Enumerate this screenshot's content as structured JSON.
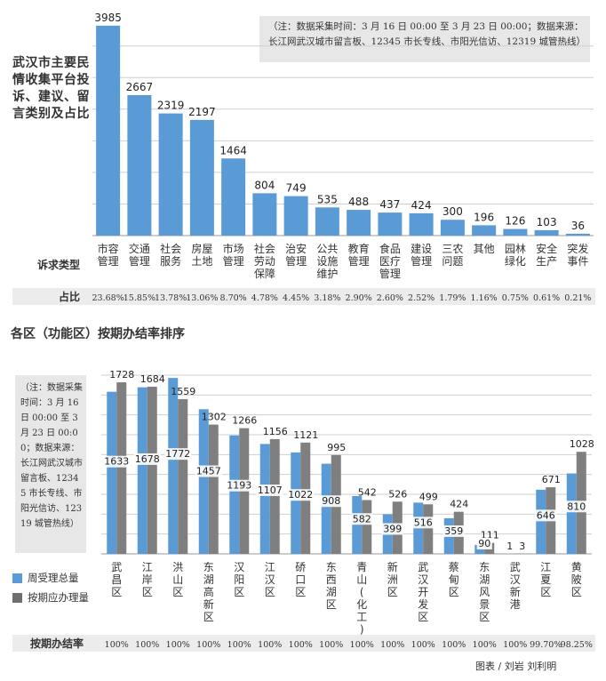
{
  "chart_data": [
    {
      "type": "bar",
      "title": "武汉市主要民情收集平台投诉、建议、留言类别及占比",
      "note": "（注：数据采集时间：3 月 16 日 00:00 至 3 月 23 日 00:00；数据来源：长江网武汉城市留言板、12345 市长专线、市阳光信访、12319 城管热线）",
      "row_label_category": "诉求类型",
      "row_label_share": "占比",
      "categories": [
        "市容管理",
        "交通管理",
        "社会服务",
        "房屋土地",
        "市场管理",
        "社会劳动保障",
        "治安管理",
        "公共设施维护",
        "教育管理",
        "食品医疗管理",
        "建设管理",
        "三农问题",
        "其他",
        "园林绿化",
        "安全生产",
        "突发事件"
      ],
      "values": [
        3985,
        2667,
        2319,
        2197,
        1464,
        804,
        749,
        535,
        488,
        437,
        424,
        300,
        196,
        126,
        103,
        36
      ],
      "shares": [
        "23.68%",
        "15.85%",
        "13.78%",
        "13.06%",
        "8.70%",
        "4.78%",
        "4.45%",
        "3.18%",
        "2.90%",
        "2.60%",
        "2.52%",
        "1.79%",
        "1.16%",
        "0.75%",
        "0.61%",
        "0.21%"
      ],
      "ylim": [
        0,
        4000
      ],
      "grid": true,
      "color": "#5b9bd5"
    },
    {
      "type": "bar",
      "title": "各区（功能区）按期办结率排序",
      "note": "（注：数据采集时间：3 月 16 日 00:00 至 3 月 23 日 00:00；数据来源：长江网武汉城市留言板、12345 市长专线、市阳光信访、12319 城管热线）",
      "categories": [
        "武昌区",
        "江岸区",
        "洪山区",
        "东湖高新区",
        "汉阳区",
        "江汉区",
        "硚口区",
        "东西湖区",
        "青山(化工)区",
        "新洲区",
        "武汉开发区",
        "蔡甸区",
        "东湖风景区",
        "武汉新港",
        "江夏区",
        "黄陂区"
      ],
      "series": [
        {
          "name": "周受理总量",
          "color": "#5b9bd5",
          "values": [
            1633,
            1678,
            1772,
            1457,
            1193,
            1107,
            1022,
            908,
            582,
            399,
            516,
            359,
            90,
            1,
            646,
            810
          ]
        },
        {
          "name": "按期应办理量",
          "color": "#7f7f7f",
          "values": [
            1728,
            1684,
            1559,
            1302,
            1266,
            1156,
            1121,
            995,
            542,
            526,
            499,
            424,
            111,
            3,
            671,
            1028
          ]
        }
      ],
      "row_label_rate": "按期办结率",
      "rates": [
        "100%",
        "100%",
        "100%",
        "100%",
        "100%",
        "100%",
        "100%",
        "100%",
        "100%",
        "100%",
        "100%",
        "100%",
        "100%",
        "100%",
        "99.70%",
        "98.25%"
      ],
      "ylim": [
        0,
        1800
      ],
      "grid": true,
      "legend": "left"
    }
  ],
  "credit": "图表 / 刘岩  刘利明"
}
